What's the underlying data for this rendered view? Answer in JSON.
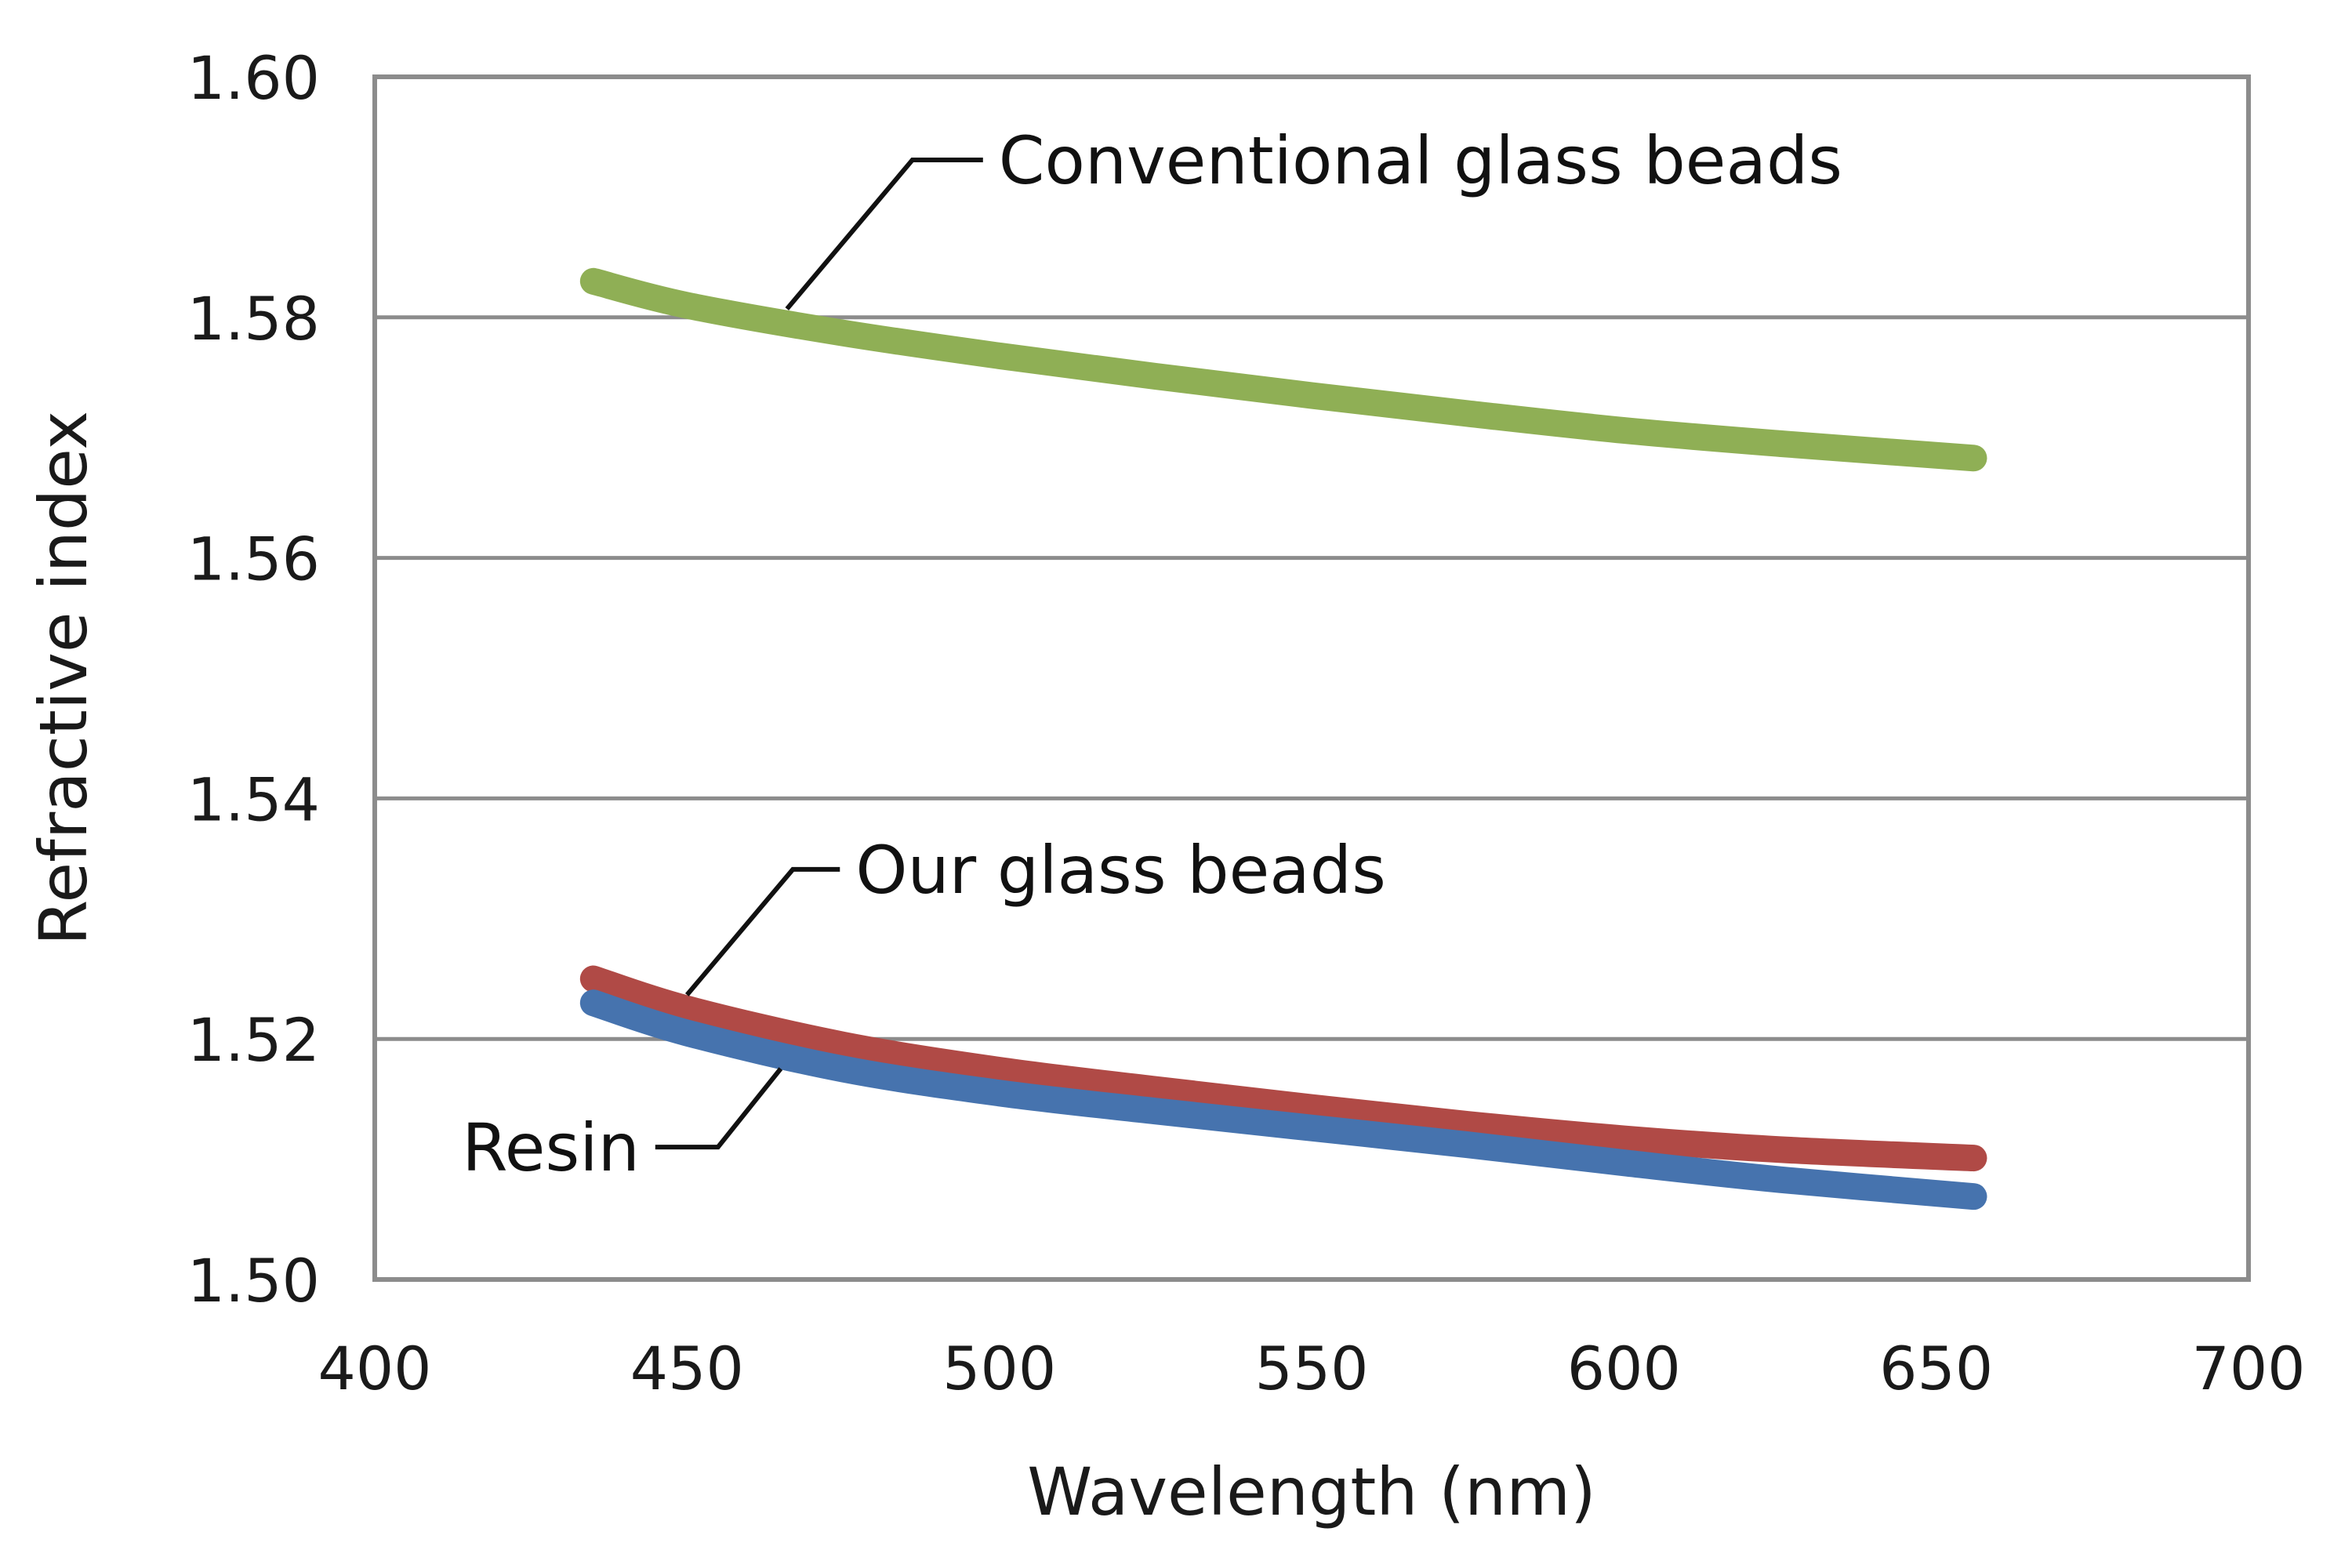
{
  "chart_data": {
    "type": "line",
    "title": "",
    "xlabel": "Wavelength (nm)",
    "ylabel": "Refractive index",
    "xlim": [
      400,
      700
    ],
    "ylim": [
      1.5,
      1.6
    ],
    "xticks": [
      400,
      450,
      500,
      550,
      600,
      650,
      700
    ],
    "xtick_labels": [
      "400",
      "450",
      "500",
      "550",
      "600",
      "650",
      "700"
    ],
    "yticks": [
      1.5,
      1.52,
      1.54,
      1.56,
      1.58,
      1.6
    ],
    "ytick_labels": [
      "1.50",
      "1.52",
      "1.54",
      "1.56",
      "1.58",
      "1.60"
    ],
    "grid": true,
    "legend": "none",
    "series": [
      {
        "name": "Conventional glass beads",
        "color": "#8faf55",
        "x": [
          435,
          450,
          475,
          500,
          525,
          550,
          575,
          600,
          625,
          656
        ],
        "y": [
          1.583,
          1.581,
          1.5787,
          1.5768,
          1.5751,
          1.5735,
          1.572,
          1.5706,
          1.5695,
          1.5683
        ]
      },
      {
        "name": "Our glass beads",
        "color": "#b04a46",
        "x": [
          435,
          450,
          475,
          500,
          525,
          550,
          575,
          600,
          625,
          656
        ],
        "y": [
          1.525,
          1.5225,
          1.5195,
          1.5174,
          1.5158,
          1.5143,
          1.5129,
          1.5117,
          1.5108,
          1.5101
        ]
      },
      {
        "name": "Resin",
        "color": "#4673ae",
        "x": [
          435,
          450,
          475,
          500,
          525,
          550,
          575,
          600,
          625,
          656
        ],
        "y": [
          1.523,
          1.5205,
          1.5175,
          1.5155,
          1.514,
          1.5126,
          1.5112,
          1.5097,
          1.5083,
          1.5069
        ]
      }
    ],
    "annotations": [
      {
        "text": "Conventional glass beads",
        "series": "Conventional glass beads",
        "point_x": 466
      },
      {
        "text": "Our glass beads",
        "series": "Our glass beads",
        "point_x": 450
      },
      {
        "text": "Resin",
        "series": "Resin",
        "point_x": 465
      }
    ],
    "colors": {
      "grid": "#8c8c8c",
      "frame": "#8c8c8c",
      "text": "#1a1a1a",
      "leader": "#111111"
    }
  }
}
